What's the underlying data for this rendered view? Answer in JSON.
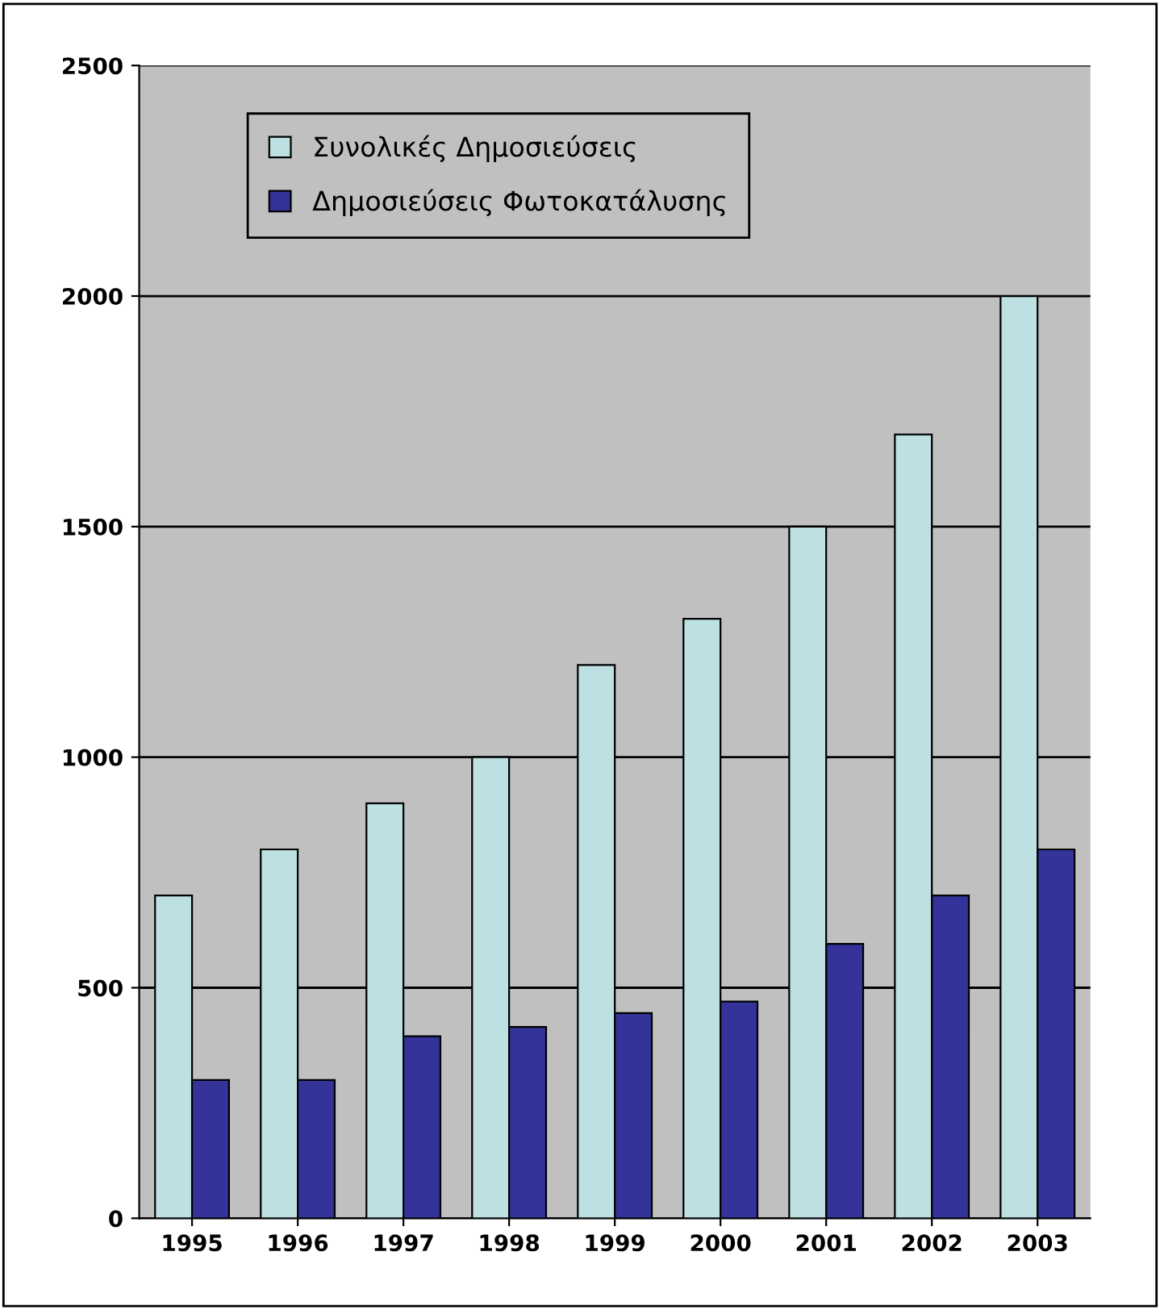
{
  "chart_data": {
    "type": "bar",
    "categories": [
      "1995",
      "1996",
      "1997",
      "1998",
      "1999",
      "2000",
      "2001",
      "2002",
      "2003"
    ],
    "series": [
      {
        "name": "Συνολικές Δημοσιεύσεις",
        "color": "#bde0e3",
        "values": [
          700,
          800,
          900,
          1000,
          1200,
          1300,
          1500,
          1700,
          2000
        ]
      },
      {
        "name": "Δημοσιεύσεις Φωτοκατάλυσης",
        "color": "#333399",
        "values": [
          300,
          300,
          395,
          415,
          445,
          470,
          595,
          700,
          800
        ]
      }
    ],
    "ylim": [
      0,
      2500
    ],
    "yticks": [
      0,
      500,
      1000,
      1500,
      2000,
      2500
    ],
    "grid": "y",
    "legend": "top left"
  }
}
